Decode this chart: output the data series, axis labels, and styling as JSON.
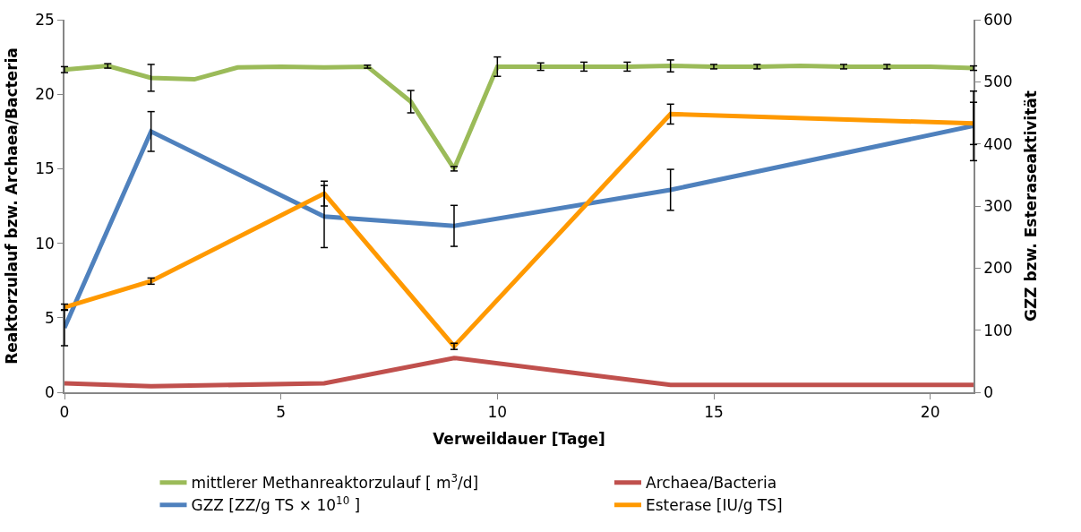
{
  "chart_data": {
    "type": "line",
    "xlabel": "Verweildauer [Tage]",
    "ylabel": "Reaktorzulauf bzw. Archaea/Bacteria",
    "y2label": "GZZ bzw. Esteraseaktivität",
    "xlim": [
      0,
      21
    ],
    "xticks": [
      0,
      5,
      10,
      15,
      20
    ],
    "ylim": [
      0,
      25
    ],
    "yticks": [
      0,
      5,
      10,
      15,
      20,
      25
    ],
    "y2lim": [
      0,
      600
    ],
    "y2ticks": [
      0,
      100,
      200,
      300,
      400,
      500,
      600
    ],
    "legend": "bottom",
    "marker": "none",
    "line_style": "solid",
    "series": [
      {
        "name": "mittlerer Methanreaktorzulauf [ m$^{3}$/d]",
        "color": "#9bbb59",
        "x": [
          0,
          1,
          2,
          3,
          4,
          5,
          6,
          7,
          8,
          9,
          10,
          11,
          12,
          13,
          14,
          15,
          16,
          17,
          18,
          19,
          20,
          21
        ],
        "values": [
          21.65,
          21.9,
          21.1,
          21.0,
          21.8,
          21.85,
          21.8,
          21.85,
          19.5,
          15.0,
          21.85,
          21.85,
          21.85,
          21.85,
          21.9,
          21.85,
          21.85,
          21.9,
          21.85,
          21.85,
          21.85,
          21.75
        ],
        "errors": [
          0.2,
          0.15,
          0.9,
          null,
          null,
          null,
          null,
          0.1,
          0.75,
          0.15,
          0.65,
          0.25,
          0.3,
          0.3,
          0.4,
          0.15,
          0.15,
          null,
          0.15,
          0.15,
          null,
          0.15
        ]
      },
      {
        "name": "Archaea/Bacteria",
        "color": "#c0504d",
        "x": [
          0,
          2,
          6,
          9,
          14,
          21
        ],
        "values": [
          0.6,
          0.4,
          0.6,
          2.3,
          0.5,
          0.5
        ]
      },
      {
        "name": "GZZ [ZZ/g TS × 10$^{10}$ ]",
        "color": "#4f81bd",
        "axis": "y2",
        "x": [
          0,
          2,
          6,
          9,
          14,
          21
        ],
        "values": [
          104,
          420,
          283,
          268,
          326,
          429
        ],
        "errors": [
          29,
          32,
          50,
          33,
          33,
          56
        ]
      },
      {
        "name": "Esterase [IU/g TS]",
        "color": "#ff9900",
        "axis": "y2",
        "x": [
          0,
          2,
          6,
          9,
          14,
          21
        ],
        "values": [
          137,
          179,
          320,
          74,
          448,
          433
        ],
        "errors": [
          5,
          5,
          20,
          5,
          16,
          34
        ]
      }
    ]
  }
}
